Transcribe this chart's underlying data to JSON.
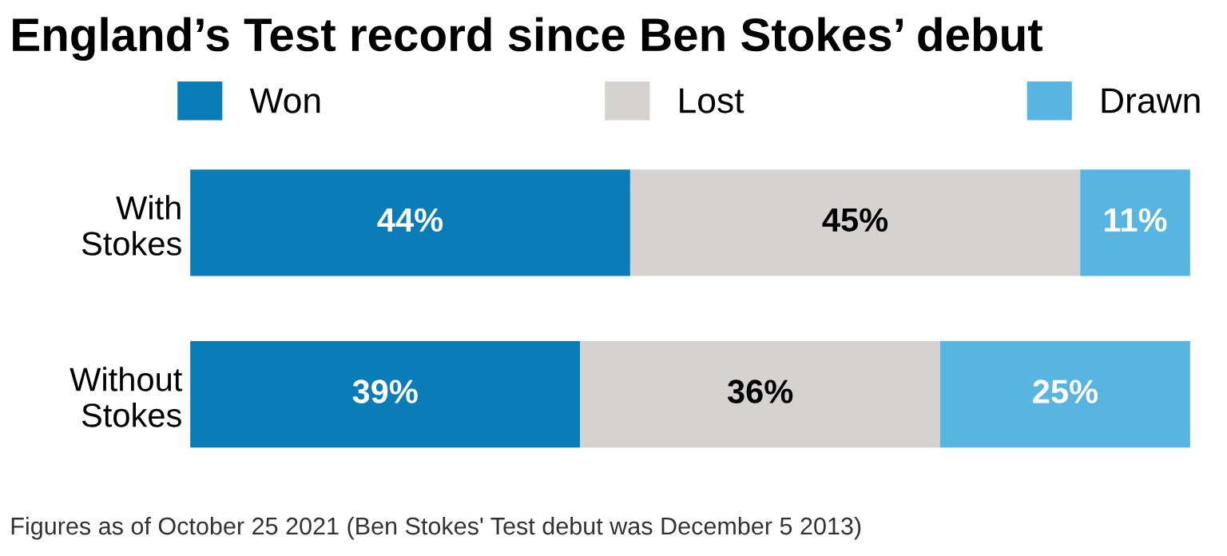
{
  "chart_data": {
    "type": "bar",
    "orientation": "horizontal",
    "stacked": true,
    "title": "England’s Test record since Ben Stokes’ debut",
    "categories": [
      "With\nStokes",
      "Without\nStokes"
    ],
    "series": [
      {
        "name": "Won",
        "color": "#0a7db8",
        "values": [
          44,
          39
        ],
        "value_labels": [
          "44%",
          "39%"
        ]
      },
      {
        "name": "Lost",
        "color": "#d4d3d1",
        "values": [
          45,
          36
        ],
        "value_labels": [
          "45%",
          "36%"
        ]
      },
      {
        "name": "Drawn",
        "color": "#58b5e1",
        "values": [
          11,
          25
        ],
        "value_labels": [
          "11%",
          "25%"
        ]
      }
    ],
    "legend": "top",
    "annotations": [
      "Figures as of October 25 2021 (Ben Stokes' Test debut was December 5 2013)"
    ]
  }
}
